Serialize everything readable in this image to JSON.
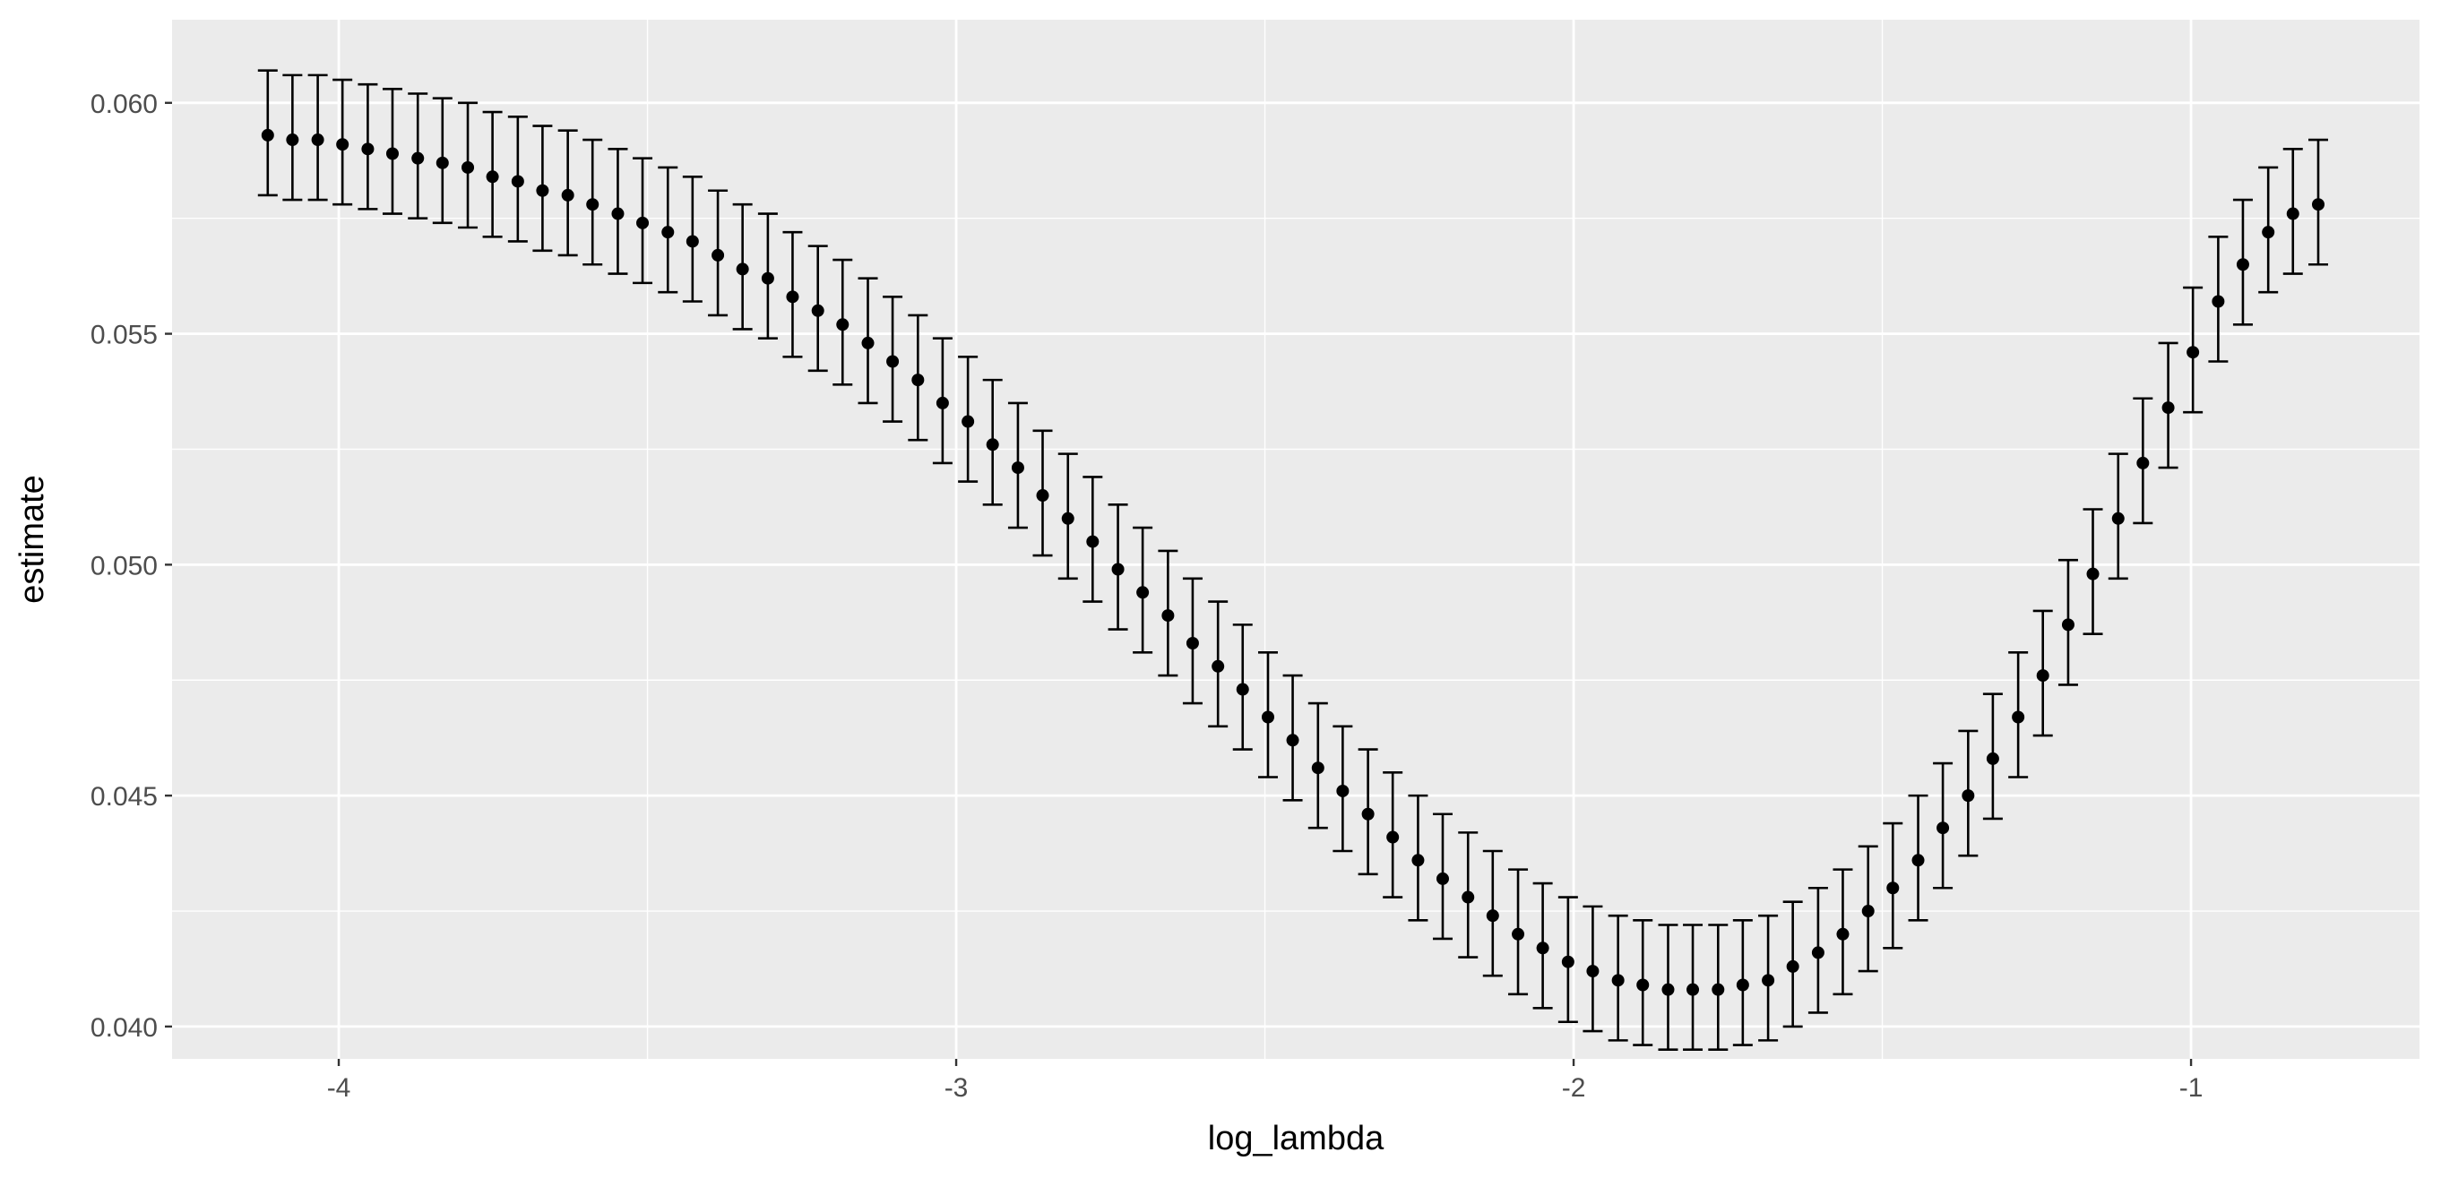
{
  "chart_data": {
    "type": "scatter",
    "subtype": "pointrange-errorbar",
    "title": "",
    "xlabel": "log_lambda",
    "ylabel": "estimate",
    "xlim": [
      -4.27,
      -0.63
    ],
    "ylim": [
      0.0393,
      0.0618
    ],
    "x_ticks": [
      -4,
      -3,
      -2,
      -1
    ],
    "x_tick_labels": [
      "-4",
      "-3",
      "-2",
      "-1"
    ],
    "y_ticks": [
      0.04,
      0.045,
      0.05,
      0.055,
      0.06
    ],
    "y_tick_labels": [
      "0.040",
      "0.045",
      "0.050",
      "0.055",
      "0.060"
    ],
    "grid": true,
    "legend": "none",
    "colors": {
      "panel": "#ebebeb",
      "grid": "#ffffff",
      "point": "#000000",
      "errorbar": "#000000"
    },
    "series": [
      {
        "x": [
          -4.115,
          -4.075,
          -4.034,
          -3.994,
          -3.953,
          -3.913,
          -3.872,
          -3.832,
          -3.791,
          -3.751,
          -3.71,
          -3.67,
          -3.629,
          -3.589,
          -3.548,
          -3.508,
          -3.467,
          -3.427,
          -3.386,
          -3.346,
          -3.305,
          -3.265,
          -3.224,
          -3.184,
          -3.143,
          -3.103,
          -3.062,
          -3.022,
          -2.981,
          -2.941,
          -2.9,
          -2.86,
          -2.819,
          -2.779,
          -2.738,
          -2.698,
          -2.657,
          -2.617,
          -2.576,
          -2.536,
          -2.495,
          -2.455,
          -2.414,
          -2.374,
          -2.333,
          -2.293,
          -2.252,
          -2.212,
          -2.171,
          -2.131,
          -2.09,
          -2.05,
          -2.009,
          -1.969,
          -1.928,
          -1.888,
          -1.847,
          -1.807,
          -1.766,
          -1.726,
          -1.685,
          -1.645,
          -1.604,
          -1.564,
          -1.523,
          -1.483,
          -1.442,
          -1.402,
          -1.361,
          -1.321,
          -1.28,
          -1.24,
          -1.199,
          -1.159,
          -1.118,
          -1.078,
          -1.037,
          -0.997,
          -0.956,
          -0.916,
          -0.875,
          -0.835,
          -0.794
        ],
        "y": [
          0.0593,
          0.0592,
          0.0592,
          0.0591,
          0.059,
          0.0589,
          0.0588,
          0.0587,
          0.0586,
          0.0584,
          0.0583,
          0.0581,
          0.058,
          0.0578,
          0.0576,
          0.0574,
          0.0572,
          0.057,
          0.0567,
          0.0564,
          0.0562,
          0.0558,
          0.0555,
          0.0552,
          0.0548,
          0.0544,
          0.054,
          0.0535,
          0.0531,
          0.0526,
          0.0521,
          0.0515,
          0.051,
          0.0505,
          0.0499,
          0.0494,
          0.0489,
          0.0483,
          0.0478,
          0.0473,
          0.0467,
          0.0462,
          0.0456,
          0.0451,
          0.0446,
          0.0441,
          0.0436,
          0.0432,
          0.0428,
          0.0424,
          0.042,
          0.0417,
          0.0414,
          0.0412,
          0.041,
          0.0409,
          0.0408,
          0.0408,
          0.0408,
          0.0409,
          0.041,
          0.0413,
          0.0416,
          0.042,
          0.0425,
          0.043,
          0.0436,
          0.0443,
          0.045,
          0.0458,
          0.0467,
          0.0476,
          0.0487,
          0.0498,
          0.051,
          0.0522,
          0.0534,
          0.0546,
          0.0557,
          0.0565,
          0.0572,
          0.0576,
          0.0578
        ],
        "ymin": [
          0.058,
          0.0579,
          0.0579,
          0.0578,
          0.0577,
          0.0576,
          0.0575,
          0.0574,
          0.0573,
          0.0571,
          0.057,
          0.0568,
          0.0567,
          0.0565,
          0.0563,
          0.0561,
          0.0559,
          0.0557,
          0.0554,
          0.0551,
          0.0549,
          0.0545,
          0.0542,
          0.0539,
          0.0535,
          0.0531,
          0.0527,
          0.0522,
          0.0518,
          0.0513,
          0.0508,
          0.0502,
          0.0497,
          0.0492,
          0.0486,
          0.0481,
          0.0476,
          0.047,
          0.0465,
          0.046,
          0.0454,
          0.0449,
          0.0443,
          0.0438,
          0.0433,
          0.0428,
          0.0423,
          0.0419,
          0.0415,
          0.0411,
          0.0407,
          0.0404,
          0.0401,
          0.0399,
          0.0397,
          0.0396,
          0.0395,
          0.0395,
          0.0395,
          0.0396,
          0.0397,
          0.04,
          0.0403,
          0.0407,
          0.0412,
          0.0417,
          0.0423,
          0.043,
          0.0437,
          0.0445,
          0.0454,
          0.0463,
          0.0474,
          0.0485,
          0.0497,
          0.0509,
          0.0521,
          0.0533,
          0.0544,
          0.0552,
          0.0559,
          0.0563,
          0.0565
        ],
        "ymax": [
          0.0607,
          0.0606,
          0.0606,
          0.0605,
          0.0604,
          0.0603,
          0.0602,
          0.0601,
          0.06,
          0.0598,
          0.0597,
          0.0595,
          0.0594,
          0.0592,
          0.059,
          0.0588,
          0.0586,
          0.0584,
          0.0581,
          0.0578,
          0.0576,
          0.0572,
          0.0569,
          0.0566,
          0.0562,
          0.0558,
          0.0554,
          0.0549,
          0.0545,
          0.054,
          0.0535,
          0.0529,
          0.0524,
          0.0519,
          0.0513,
          0.0508,
          0.0503,
          0.0497,
          0.0492,
          0.0487,
          0.0481,
          0.0476,
          0.047,
          0.0465,
          0.046,
          0.0455,
          0.045,
          0.0446,
          0.0442,
          0.0438,
          0.0434,
          0.0431,
          0.0428,
          0.0426,
          0.0424,
          0.0423,
          0.0422,
          0.0422,
          0.0422,
          0.0423,
          0.0424,
          0.0427,
          0.043,
          0.0434,
          0.0439,
          0.0444,
          0.045,
          0.0457,
          0.0464,
          0.0472,
          0.0481,
          0.049,
          0.0501,
          0.0512,
          0.0524,
          0.0536,
          0.0548,
          0.056,
          0.0571,
          0.0579,
          0.0586,
          0.059,
          0.0592
        ]
      }
    ]
  }
}
